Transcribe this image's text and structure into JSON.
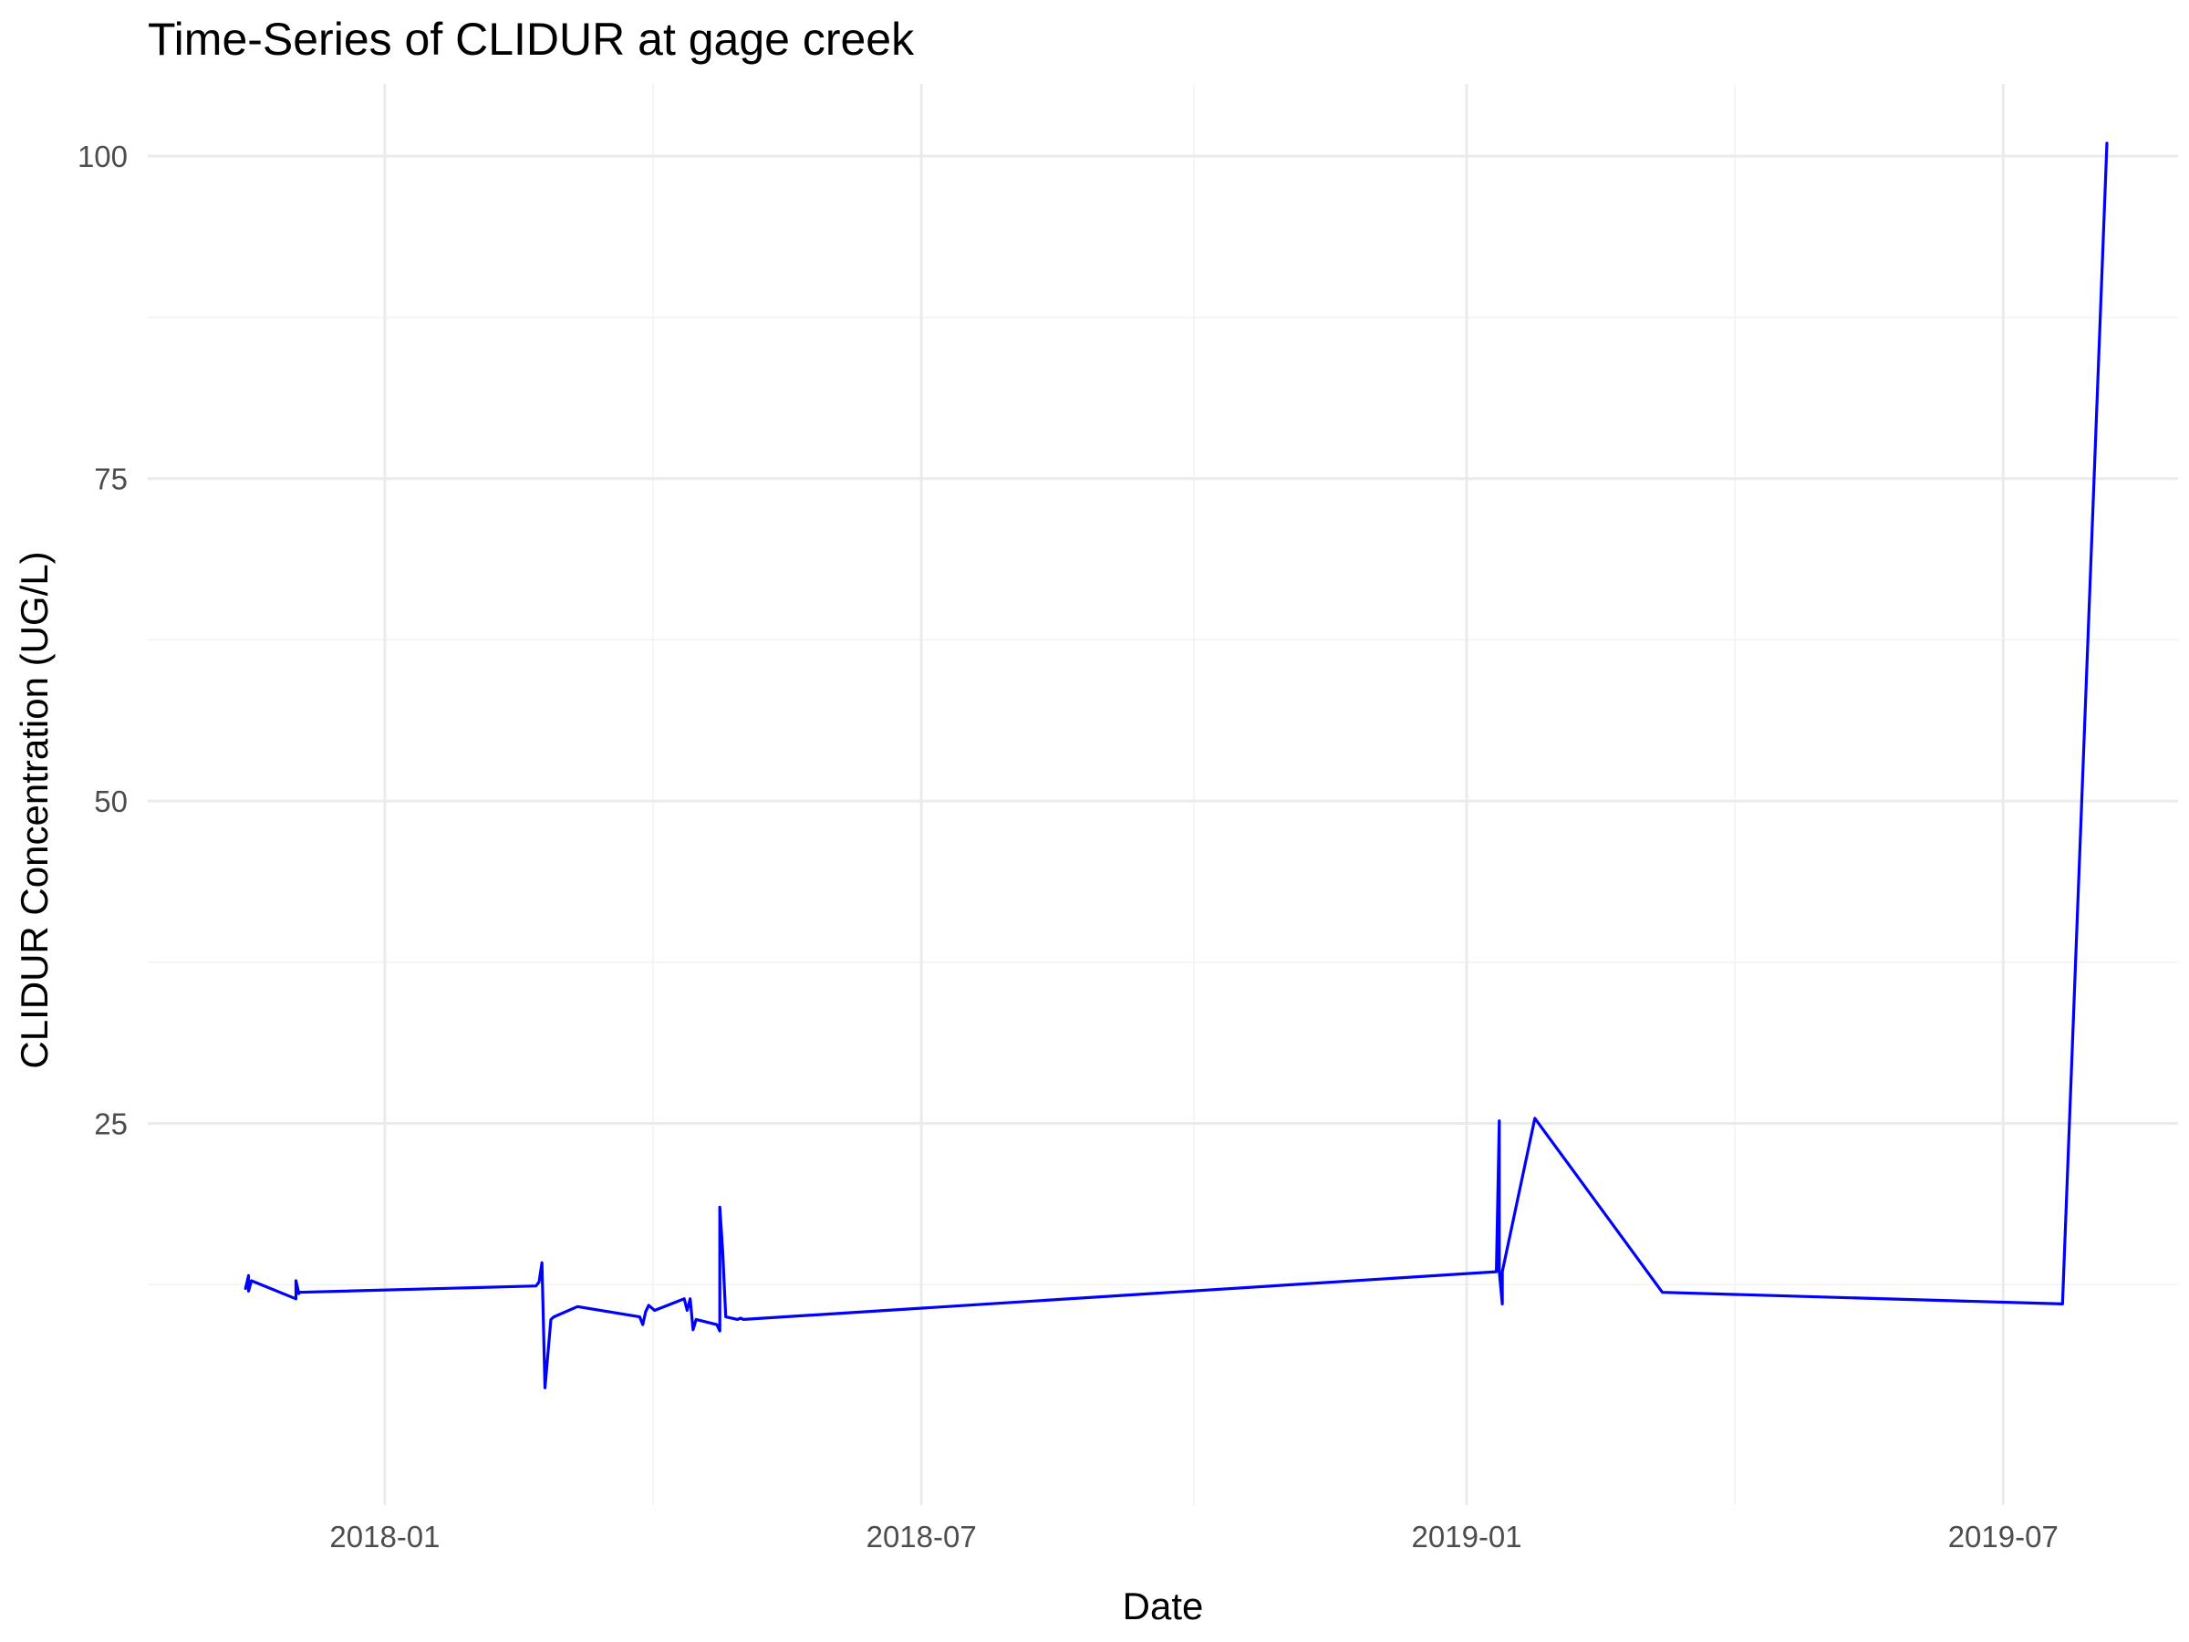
{
  "chart_data": {
    "type": "line",
    "title": "Time-Series of CLIDUR at gage creek",
    "xlabel": "Date",
    "ylabel": "CLIDUR Concentration (UG/L)",
    "xlim": [
      "2017-10-13",
      "2019-08-29"
    ],
    "ylim": [
      -4.6,
      105.6
    ],
    "x_ticks": [
      "2018-01-01",
      "2018-07-01",
      "2019-01-01",
      "2019-07-01"
    ],
    "x_tick_labels": [
      "2018-01",
      "2018-07",
      "2019-01",
      "2019-07"
    ],
    "y_ticks": [
      25,
      50,
      75,
      100
    ],
    "grid": true,
    "legend": "none",
    "color": "#0000ff",
    "series": [
      {
        "x": [
          "2017-11-15",
          "2017-11-16",
          "2017-11-16",
          "2017-11-17",
          "2017-12-02",
          "2017-12-02",
          "2017-12-03",
          "2017-12-03",
          "2018-02-21",
          "2018-02-22",
          "2018-02-23",
          "2018-02-24",
          "2018-02-26",
          "2018-02-27",
          "2018-03-07",
          "2018-03-28",
          "2018-03-29",
          "2018-03-30",
          "2018-03-31",
          "2018-04-02",
          "2018-04-12",
          "2018-04-13",
          "2018-04-13",
          "2018-04-14",
          "2018-04-15",
          "2018-04-16",
          "2018-04-23",
          "2018-04-24",
          "2018-04-24",
          "2018-04-25",
          "2018-04-26",
          "2018-04-30",
          "2018-05-01",
          "2018-05-02",
          "2019-01-11",
          "2019-01-12",
          "2019-01-12",
          "2019-01-13",
          "2019-01-13",
          "2019-01-24",
          "2019-03-08",
          "2019-07-21",
          "2019-08-05"
        ],
        "values": [
          12.2,
          13.2,
          12.0,
          12.8,
          11.4,
          12.8,
          11.8,
          11.9,
          12.4,
          12.7,
          14.2,
          4.5,
          9.8,
          10.0,
          10.8,
          10.0,
          9.4,
          10.4,
          10.9,
          10.5,
          11.4,
          10.5,
          10.5,
          11.4,
          9.0,
          9.8,
          9.4,
          8.9,
          18.5,
          15.0,
          10.0,
          9.8,
          9.9,
          9.8,
          13.5,
          25.2,
          13.5,
          11.0,
          13.5,
          25.4,
          11.9,
          11.0,
          101.0
        ]
      }
    ]
  }
}
